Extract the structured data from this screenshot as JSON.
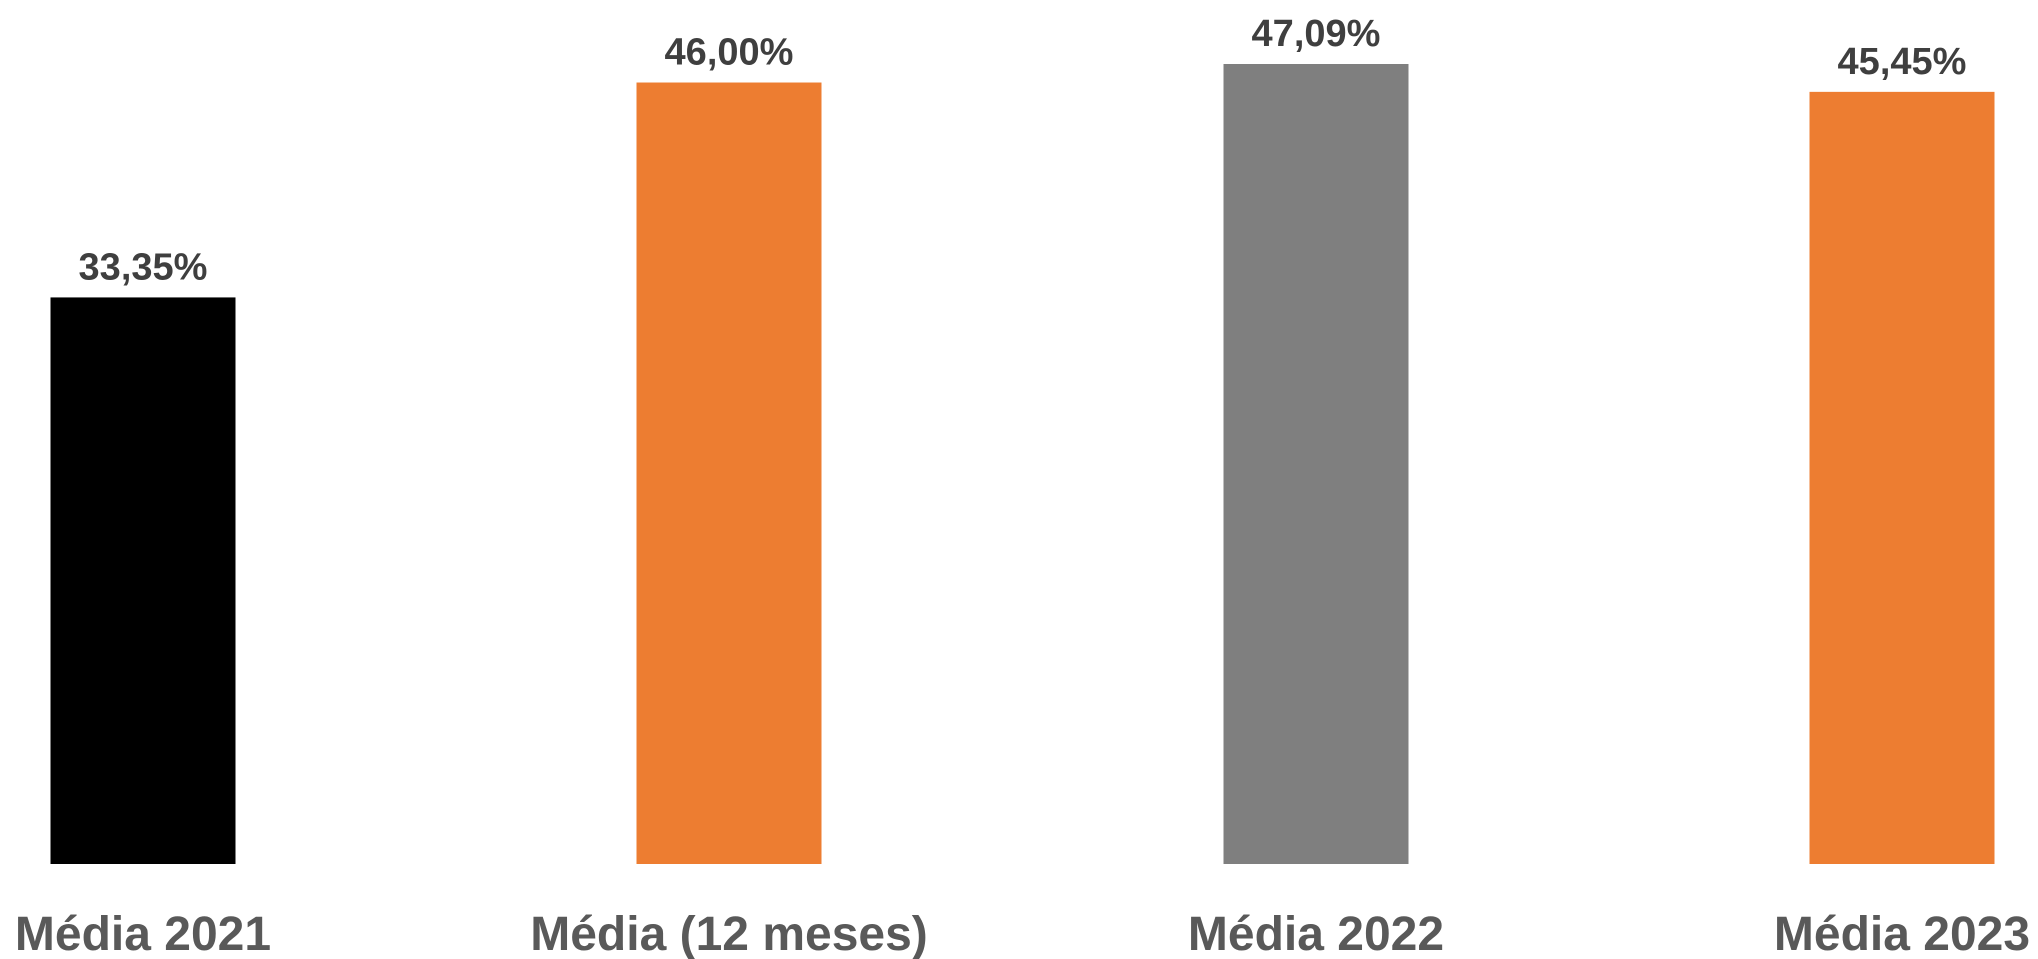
{
  "chart_data": {
    "type": "bar",
    "title": "",
    "xlabel": "",
    "ylabel": "",
    "categories": [
      "Média 2021",
      "Média (12 meses)",
      "Média 2022",
      "Média 2023"
    ],
    "values": [
      33.35,
      46.0,
      47.09,
      45.45
    ],
    "data_labels": [
      "33,35%",
      "46,00%",
      "47,09%",
      "45,45%"
    ],
    "colors": [
      "#000000",
      "#ED7D31",
      "#7F7F7F",
      "#ED7D31"
    ],
    "ylim": [
      0,
      47.09
    ],
    "grid": false,
    "legend": "none"
  }
}
